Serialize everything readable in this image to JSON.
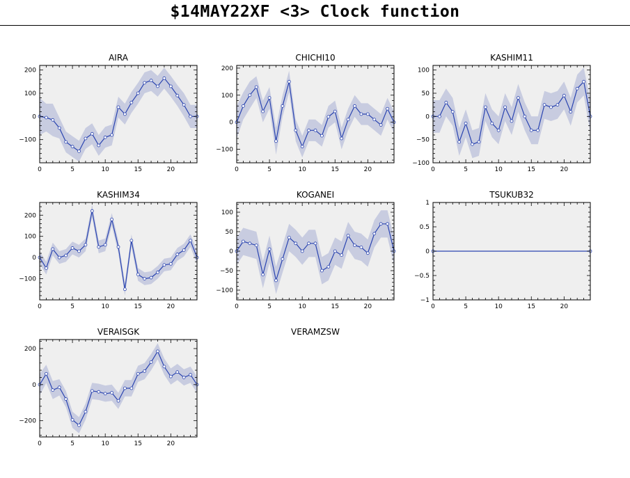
{
  "page": {
    "title": "$14MAY22XF <3>  Clock function"
  },
  "chart_data": [
    {
      "type": "line",
      "title": "AIRA",
      "x": [
        0,
        1,
        2,
        3,
        4,
        5,
        6,
        7,
        8,
        9,
        10,
        11,
        12,
        13,
        14,
        15,
        16,
        17,
        18,
        19,
        20,
        21,
        22,
        23,
        24
      ],
      "series": [
        {
          "values": [
            0,
            -5,
            -15,
            -50,
            -110,
            -130,
            -150,
            -95,
            -75,
            -125,
            -90,
            -80,
            40,
            10,
            60,
            100,
            145,
            155,
            130,
            165,
            130,
            90,
            50,
            0,
            0
          ],
          "band": [
            80,
            60,
            70,
            45,
            45,
            45,
            45,
            45,
            45,
            45,
            45,
            45,
            45,
            45,
            45,
            45,
            45,
            45,
            45,
            45,
            45,
            45,
            50,
            50,
            50
          ]
        }
      ],
      "xlim": [
        0,
        24
      ],
      "ylim": [
        -200,
        220
      ],
      "xticks": [
        0,
        5,
        10,
        15,
        20
      ],
      "yticks": [
        -100,
        0,
        100,
        200
      ]
    },
    {
      "type": "line",
      "title": "CHICHI10",
      "x": [
        0,
        1,
        2,
        3,
        4,
        5,
        6,
        7,
        8,
        9,
        10,
        11,
        12,
        13,
        14,
        15,
        16,
        17,
        18,
        19,
        20,
        21,
        22,
        23,
        24
      ],
      "series": [
        {
          "values": [
            0,
            60,
            100,
            130,
            40,
            90,
            -70,
            60,
            150,
            -30,
            -90,
            -30,
            -30,
            -50,
            20,
            40,
            -60,
            10,
            60,
            30,
            30,
            10,
            -10,
            50,
            0
          ],
          "band": [
            60,
            50,
            50,
            40,
            40,
            40,
            50,
            40,
            40,
            40,
            40,
            40,
            40,
            40,
            40,
            40,
            40,
            40,
            40,
            40,
            40,
            40,
            40,
            40,
            40
          ]
        }
      ],
      "xlim": [
        0,
        24
      ],
      "ylim": [
        -150,
        210
      ],
      "xticks": [
        0,
        5,
        10,
        15,
        20
      ],
      "yticks": [
        -100,
        0,
        100,
        200
      ]
    },
    {
      "type": "line",
      "title": "KASHIM11",
      "x": [
        0,
        1,
        2,
        3,
        4,
        5,
        6,
        7,
        8,
        9,
        10,
        11,
        12,
        13,
        14,
        15,
        16,
        17,
        18,
        19,
        20,
        21,
        22,
        23,
        24
      ],
      "series": [
        {
          "values": [
            0,
            0,
            30,
            10,
            -55,
            -15,
            -60,
            -55,
            20,
            -15,
            -30,
            20,
            -10,
            40,
            0,
            -30,
            -30,
            25,
            20,
            25,
            45,
            10,
            60,
            75,
            0
          ],
          "band": [
            35,
            35,
            30,
            30,
            30,
            30,
            30,
            30,
            30,
            30,
            30,
            30,
            30,
            30,
            30,
            30,
            30,
            30,
            30,
            30,
            30,
            30,
            30,
            30,
            35
          ]
        }
      ],
      "xlim": [
        0,
        24
      ],
      "ylim": [
        -100,
        110
      ],
      "xticks": [
        0,
        5,
        10,
        15,
        20
      ],
      "yticks": [
        -100,
        -50,
        0,
        50,
        100
      ]
    },
    {
      "type": "line",
      "title": "KASHIM34",
      "x": [
        0,
        1,
        2,
        3,
        4,
        5,
        6,
        7,
        8,
        9,
        10,
        11,
        12,
        13,
        14,
        15,
        16,
        17,
        18,
        19,
        20,
        21,
        22,
        23,
        24
      ],
      "series": [
        {
          "values": [
            0,
            -50,
            40,
            0,
            10,
            45,
            30,
            60,
            220,
            50,
            60,
            180,
            50,
            -150,
            80,
            -80,
            -100,
            -95,
            -70,
            -35,
            -30,
            15,
            35,
            80,
            0
          ],
          "band": [
            30,
            30,
            30,
            30,
            30,
            30,
            30,
            30,
            30,
            30,
            30,
            30,
            30,
            30,
            30,
            30,
            30,
            30,
            30,
            30,
            30,
            30,
            30,
            30,
            30
          ]
        }
      ],
      "xlim": [
        0,
        24
      ],
      "ylim": [
        -200,
        260
      ],
      "xticks": [
        0,
        5,
        10,
        15,
        20
      ],
      "yticks": [
        -100,
        0,
        100,
        200
      ]
    },
    {
      "type": "line",
      "title": "KOGANEI",
      "x": [
        0,
        1,
        2,
        3,
        4,
        5,
        6,
        7,
        8,
        9,
        10,
        11,
        12,
        13,
        14,
        15,
        16,
        17,
        18,
        19,
        20,
        21,
        22,
        23,
        24
      ],
      "series": [
        {
          "values": [
            0,
            25,
            20,
            15,
            -60,
            5,
            -75,
            -20,
            35,
            20,
            0,
            20,
            20,
            -50,
            -40,
            0,
            -10,
            40,
            15,
            10,
            -5,
            45,
            70,
            70,
            0
          ],
          "band": [
            35,
            35,
            35,
            35,
            35,
            35,
            35,
            35,
            35,
            35,
            35,
            35,
            35,
            35,
            35,
            35,
            35,
            35,
            35,
            35,
            35,
            35,
            35,
            35,
            35
          ]
        }
      ],
      "xlim": [
        0,
        24
      ],
      "ylim": [
        -125,
        125
      ],
      "xticks": [
        0,
        5,
        10,
        15,
        20
      ],
      "yticks": [
        -100,
        -50,
        0,
        50,
        100
      ]
    },
    {
      "type": "line",
      "title": "TSUKUB32",
      "x": [
        0,
        24
      ],
      "series": [
        {
          "values": [
            0,
            0
          ],
          "band": [
            0,
            0
          ]
        }
      ],
      "xlim": [
        0,
        24
      ],
      "ylim": [
        -1,
        1
      ],
      "xticks": [
        0,
        5,
        10,
        15,
        20
      ],
      "yticks": [
        -1,
        -0.5,
        0,
        0.5,
        1
      ]
    },
    {
      "type": "line",
      "title": "VERAISGK",
      "x": [
        0,
        1,
        2,
        3,
        4,
        5,
        6,
        7,
        8,
        9,
        10,
        11,
        12,
        13,
        14,
        15,
        16,
        17,
        18,
        19,
        20,
        21,
        22,
        23,
        24
      ],
      "series": [
        {
          "values": [
            0,
            60,
            -30,
            -15,
            -80,
            -195,
            -225,
            -150,
            -35,
            -40,
            -50,
            -45,
            -90,
            -20,
            -20,
            60,
            75,
            125,
            185,
            100,
            45,
            70,
            40,
            55,
            0
          ],
          "band": [
            60,
            50,
            50,
            45,
            45,
            45,
            45,
            45,
            45,
            45,
            45,
            45,
            45,
            45,
            45,
            45,
            45,
            45,
            45,
            45,
            45,
            45,
            45,
            45,
            45
          ]
        }
      ],
      "xlim": [
        0,
        24
      ],
      "ylim": [
        -290,
        250
      ],
      "xticks": [
        0,
        5,
        10,
        15,
        20
      ],
      "yticks": [
        -200,
        0,
        200
      ]
    },
    {
      "type": "line",
      "title": "VERAMZSW",
      "x": [],
      "series": [],
      "empty": true
    }
  ]
}
